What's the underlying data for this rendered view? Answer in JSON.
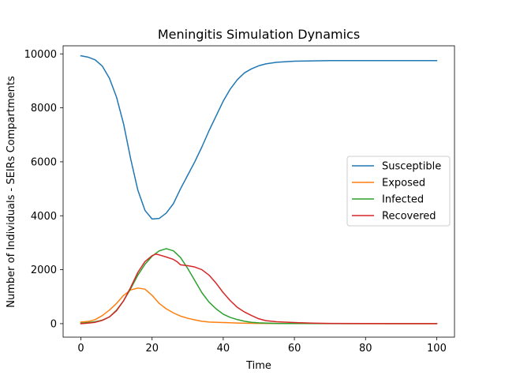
{
  "chart_data": {
    "type": "line",
    "title": "Meningitis Simulation Dynamics",
    "xlabel": "Time",
    "ylabel": "Number of Individuals - SEIRs Compartments",
    "xlim": [
      -5,
      105
    ],
    "ylim": [
      -500,
      10300
    ],
    "xticks": [
      0,
      20,
      40,
      60,
      80,
      100
    ],
    "yticks": [
      0,
      2000,
      4000,
      6000,
      8000,
      10000
    ],
    "grid": false,
    "legend_position": "center-right",
    "series": [
      {
        "name": "Susceptible",
        "color": "#1f77b4",
        "points": [
          [
            0,
            9930
          ],
          [
            2,
            9880
          ],
          [
            4,
            9780
          ],
          [
            6,
            9550
          ],
          [
            8,
            9100
          ],
          [
            10,
            8400
          ],
          [
            12,
            7400
          ],
          [
            14,
            6100
          ],
          [
            16,
            4950
          ],
          [
            18,
            4200
          ],
          [
            20,
            3880
          ],
          [
            22,
            3900
          ],
          [
            24,
            4100
          ],
          [
            26,
            4450
          ],
          [
            28,
            5000
          ],
          [
            30,
            5500
          ],
          [
            32,
            6000
          ],
          [
            34,
            6550
          ],
          [
            36,
            7150
          ],
          [
            38,
            7700
          ],
          [
            40,
            8250
          ],
          [
            42,
            8700
          ],
          [
            44,
            9050
          ],
          [
            46,
            9300
          ],
          [
            48,
            9450
          ],
          [
            50,
            9560
          ],
          [
            52,
            9630
          ],
          [
            55,
            9690
          ],
          [
            60,
            9730
          ],
          [
            70,
            9750
          ],
          [
            80,
            9750
          ],
          [
            90,
            9750
          ],
          [
            100,
            9750
          ]
        ]
      },
      {
        "name": "Exposed",
        "color": "#ff7f0e",
        "points": [
          [
            0,
            60
          ],
          [
            2,
            80
          ],
          [
            4,
            150
          ],
          [
            6,
            300
          ],
          [
            8,
            500
          ],
          [
            10,
            750
          ],
          [
            12,
            1050
          ],
          [
            14,
            1250
          ],
          [
            16,
            1320
          ],
          [
            18,
            1280
          ],
          [
            20,
            1050
          ],
          [
            22,
            750
          ],
          [
            24,
            550
          ],
          [
            26,
            400
          ],
          [
            28,
            280
          ],
          [
            30,
            200
          ],
          [
            32,
            140
          ],
          [
            34,
            90
          ],
          [
            36,
            60
          ],
          [
            40,
            40
          ],
          [
            45,
            20
          ],
          [
            50,
            10
          ],
          [
            60,
            5
          ],
          [
            80,
            0
          ],
          [
            100,
            0
          ]
        ]
      },
      {
        "name": "Infected",
        "color": "#2ca02c",
        "points": [
          [
            0,
            20
          ],
          [
            2,
            40
          ],
          [
            4,
            70
          ],
          [
            6,
            130
          ],
          [
            8,
            250
          ],
          [
            10,
            500
          ],
          [
            12,
            850
          ],
          [
            14,
            1300
          ],
          [
            16,
            1800
          ],
          [
            18,
            2200
          ],
          [
            20,
            2500
          ],
          [
            22,
            2700
          ],
          [
            24,
            2780
          ],
          [
            26,
            2700
          ],
          [
            28,
            2450
          ],
          [
            30,
            2050
          ],
          [
            32,
            1600
          ],
          [
            34,
            1150
          ],
          [
            36,
            800
          ],
          [
            38,
            550
          ],
          [
            40,
            350
          ],
          [
            42,
            230
          ],
          [
            44,
            150
          ],
          [
            46,
            90
          ],
          [
            48,
            50
          ],
          [
            50,
            30
          ],
          [
            55,
            10
          ],
          [
            60,
            5
          ],
          [
            80,
            0
          ],
          [
            100,
            0
          ]
        ]
      },
      {
        "name": "Recovered",
        "color": "#d62728",
        "points": [
          [
            0,
            0
          ],
          [
            2,
            20
          ],
          [
            4,
            50
          ],
          [
            6,
            120
          ],
          [
            8,
            250
          ],
          [
            10,
            480
          ],
          [
            12,
            850
          ],
          [
            14,
            1350
          ],
          [
            16,
            1900
          ],
          [
            18,
            2300
          ],
          [
            20,
            2520
          ],
          [
            21,
            2580
          ],
          [
            22,
            2550
          ],
          [
            24,
            2470
          ],
          [
            26,
            2380
          ],
          [
            27,
            2300
          ],
          [
            28,
            2180
          ],
          [
            30,
            2150
          ],
          [
            32,
            2100
          ],
          [
            34,
            2000
          ],
          [
            36,
            1800
          ],
          [
            38,
            1500
          ],
          [
            40,
            1150
          ],
          [
            42,
            850
          ],
          [
            44,
            600
          ],
          [
            46,
            430
          ],
          [
            48,
            300
          ],
          [
            50,
            180
          ],
          [
            52,
            110
          ],
          [
            55,
            70
          ],
          [
            60,
            40
          ],
          [
            65,
            20
          ],
          [
            70,
            10
          ],
          [
            80,
            5
          ],
          [
            100,
            0
          ]
        ]
      }
    ]
  }
}
